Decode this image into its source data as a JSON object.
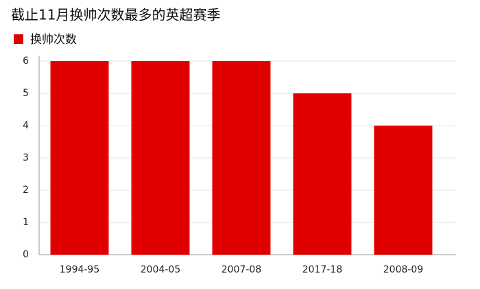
{
  "chart_data": {
    "type": "bar",
    "title": "截止11月换帅次数最多的英超赛季",
    "categories": [
      "1994-95",
      "2004-05",
      "2007-08",
      "2017-18",
      "2008-09"
    ],
    "series": [
      {
        "name": "换帅次数",
        "color": "#e00000",
        "values": [
          6,
          6,
          6,
          5,
          4
        ]
      }
    ],
    "ylim": [
      0,
      6
    ],
    "yticks": [
      0,
      1,
      2,
      3,
      4,
      5,
      6
    ],
    "grid": true
  }
}
